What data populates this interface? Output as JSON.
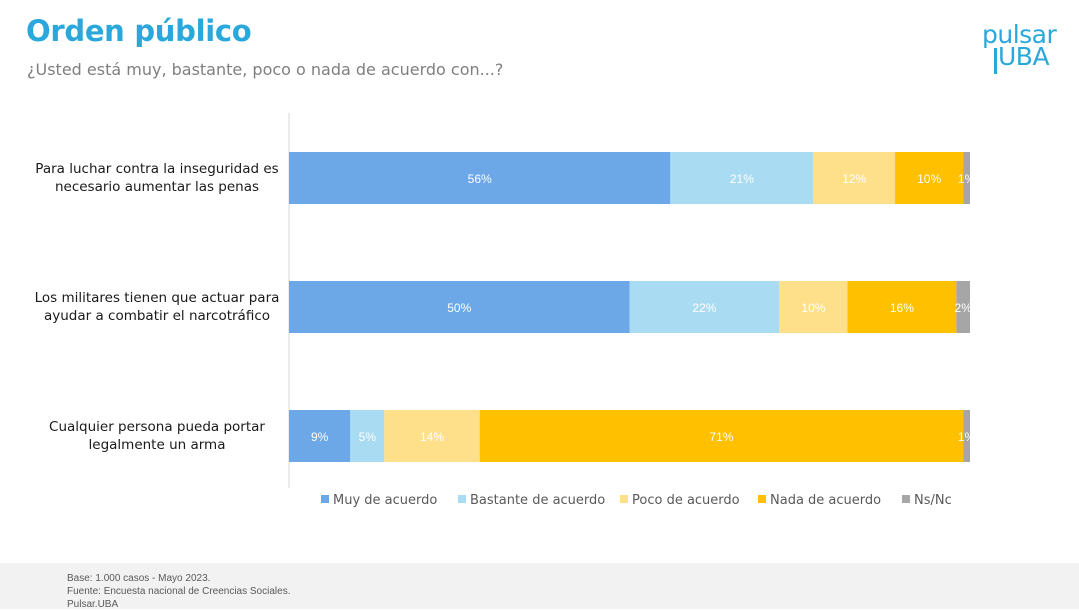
{
  "header": {
    "title": "Orden público",
    "subtitle": "¿Usted está muy, bastante, poco o nada de acuerdo con...?"
  },
  "logo": {
    "line1": "pulsar",
    "line2": "UBA"
  },
  "footer": {
    "line1": "Base:  1.000 casos - Mayo 2023.",
    "line2": "Fuente: Encuesta nacional de Creencias Sociales.",
    "line3": "Pulsar.UBA"
  },
  "colors": {
    "muy": "#6ca8e8",
    "bastante": "#a9dcf2",
    "poco": "#ffe08a",
    "nada": "#ffc000",
    "nsnc": "#a6a6a6"
  },
  "chart_data": {
    "type": "bar",
    "orientation": "horizontal",
    "stacked": "percent",
    "categories": [
      [
        "Para luchar contra la inseguridad es",
        "necesario aumentar las penas"
      ],
      [
        "Los militares tienen que actuar para",
        "ayudar a combatir el narcotráfico"
      ],
      [
        "Cualquier persona pueda portar",
        "legalmente un arma"
      ]
    ],
    "series": [
      {
        "name": "Muy de acuerdo",
        "values": [
          56,
          50,
          9
        ],
        "labels": [
          "56%",
          "50%",
          "9%"
        ]
      },
      {
        "name": "Bastante de acuerdo",
        "values": [
          21,
          22,
          5
        ],
        "labels": [
          "21%",
          "22%",
          "5%"
        ]
      },
      {
        "name": "Poco de acuerdo",
        "values": [
          12,
          10,
          14
        ],
        "labels": [
          "12%",
          "10%",
          "14%"
        ]
      },
      {
        "name": "Nada de acuerdo",
        "values": [
          10,
          16,
          71
        ],
        "labels": [
          "10%",
          "16%",
          "71%"
        ]
      },
      {
        "name": "Ns/Nc",
        "values": [
          1,
          2,
          1
        ],
        "labels": [
          "1%",
          "2%",
          "1%"
        ]
      }
    ],
    "legend": "bottom",
    "grid": false
  }
}
